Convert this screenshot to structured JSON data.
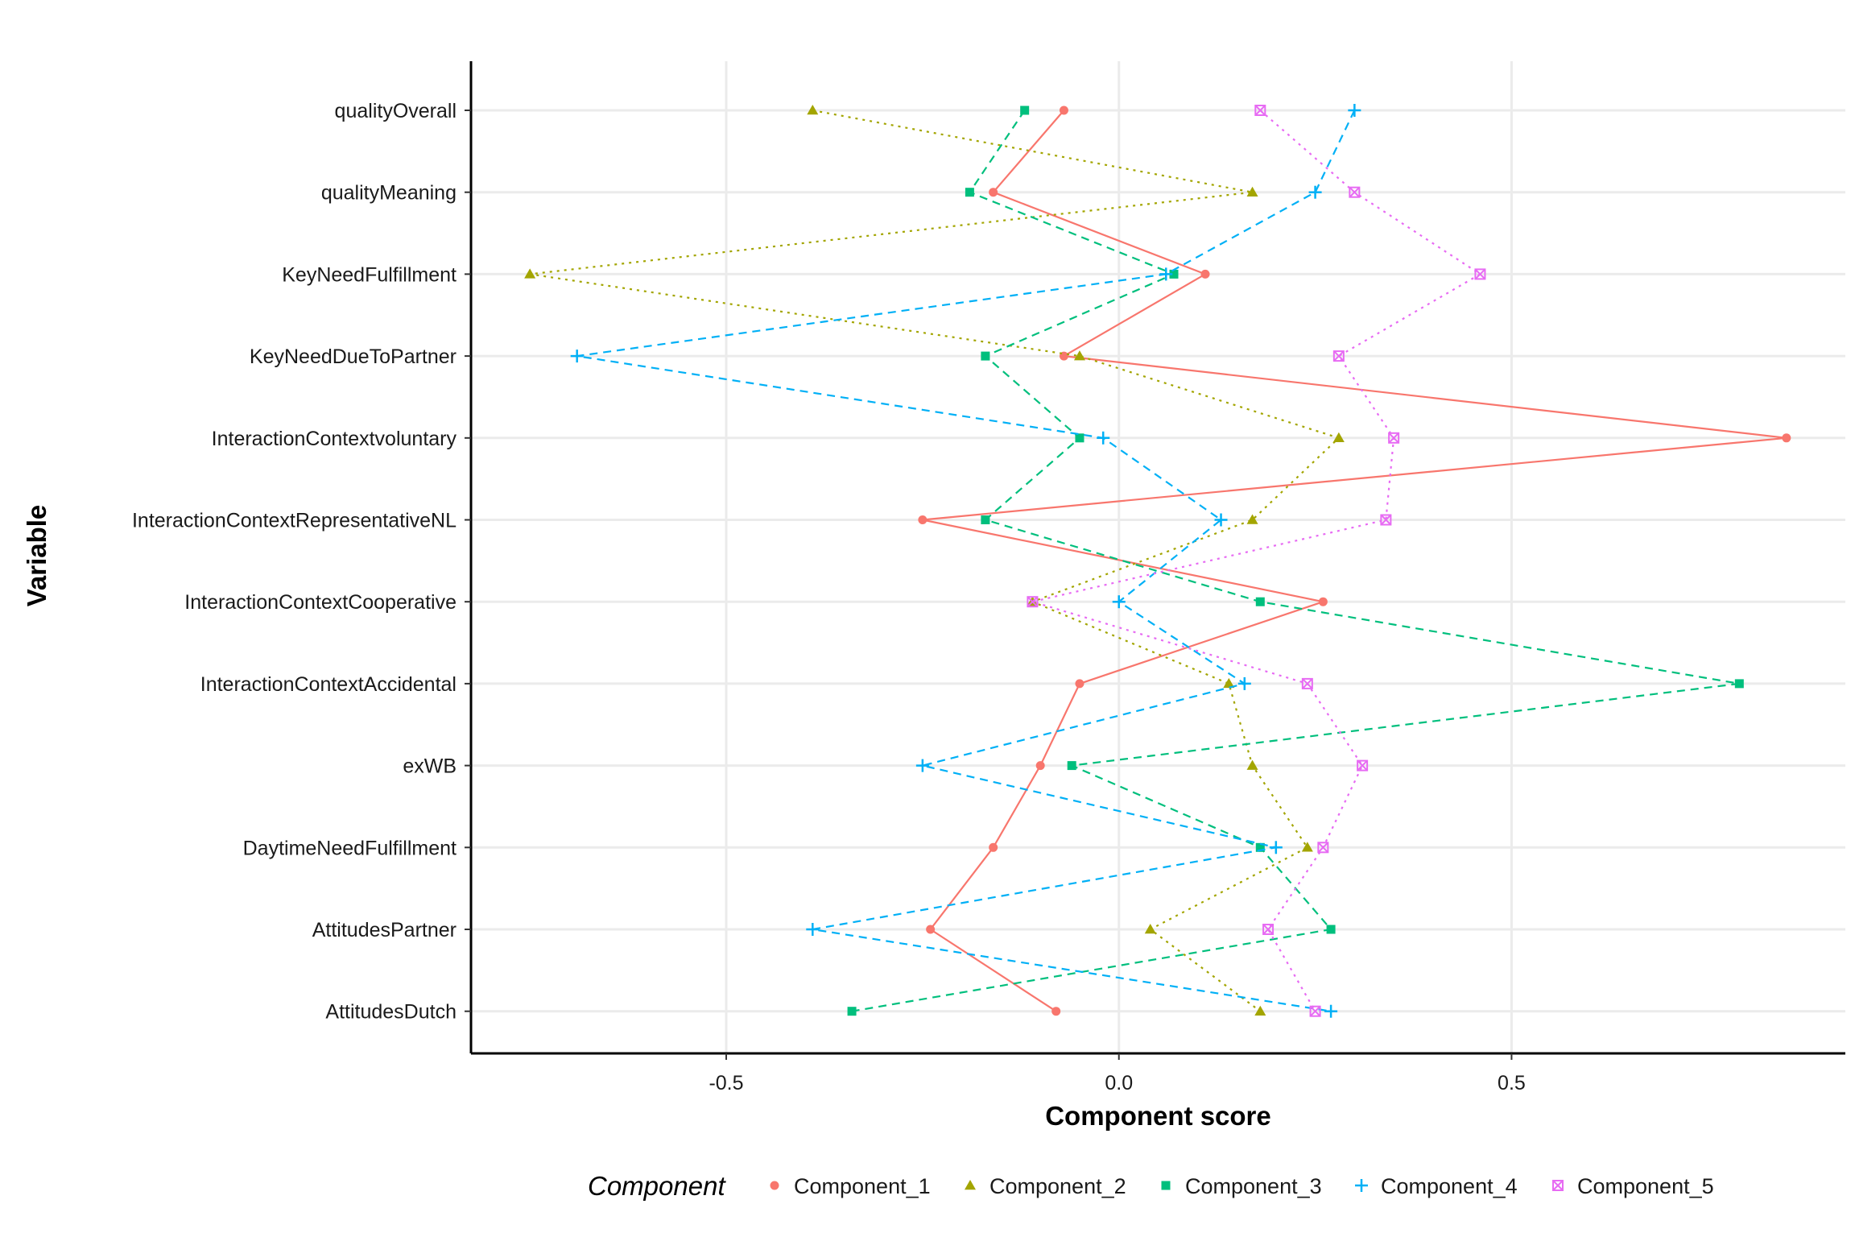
{
  "chart_data": {
    "type": "line",
    "title": "",
    "xlabel": "Component score",
    "ylabel": "Variable",
    "xlim": [
      -0.825,
      0.925
    ],
    "xticks": [
      -0.5,
      0.0,
      0.5
    ],
    "xtick_labels": [
      "-0.5",
      "0.0",
      "0.5"
    ],
    "grid": true,
    "legend": {
      "title": "Component",
      "position": "bottom"
    },
    "categories": [
      "qualityOverall",
      "qualityMeaning",
      "KeyNeedFulfillment",
      "KeyNeedDueToPartner",
      "InteractionContextvoluntary",
      "InteractionContextRepresentativeNL",
      "InteractionContextCooperative",
      "InteractionContextAccidental",
      "exWB",
      "DaytimeNeedFulfillment",
      "AttitudesPartner",
      "AttitudesDutch"
    ],
    "series": [
      {
        "name": "Component_1",
        "color": "#F8766D",
        "marker": "circle",
        "linestyle": "solid",
        "values": [
          -0.07,
          -0.16,
          0.11,
          -0.07,
          0.85,
          -0.25,
          0.26,
          -0.05,
          -0.1,
          -0.16,
          -0.24,
          -0.08
        ]
      },
      {
        "name": "Component_2",
        "color": "#A3A500",
        "marker": "triangle",
        "linestyle": "dotted",
        "values": [
          -0.39,
          0.17,
          -0.75,
          -0.05,
          0.28,
          0.17,
          -0.11,
          0.14,
          0.17,
          0.24,
          0.04,
          0.18
        ]
      },
      {
        "name": "Component_3",
        "color": "#00BF7D",
        "marker": "square",
        "linestyle": "dashed",
        "values": [
          -0.12,
          -0.19,
          0.07,
          -0.17,
          -0.05,
          -0.17,
          0.18,
          0.79,
          -0.06,
          0.18,
          0.27,
          -0.34
        ]
      },
      {
        "name": "Component_4",
        "color": "#00B0F6",
        "marker": "plus",
        "linestyle": "dashed",
        "values": [
          0.3,
          0.25,
          0.06,
          -0.69,
          -0.02,
          0.13,
          0.0,
          0.16,
          -0.25,
          0.2,
          -0.39,
          0.27
        ]
      },
      {
        "name": "Component_5",
        "color": "#E76BF3",
        "marker": "boxx",
        "linestyle": "dotted",
        "values": [
          0.18,
          0.3,
          0.46,
          0.28,
          0.35,
          0.34,
          -0.11,
          0.24,
          0.31,
          0.26,
          0.19,
          0.25
        ]
      }
    ]
  }
}
